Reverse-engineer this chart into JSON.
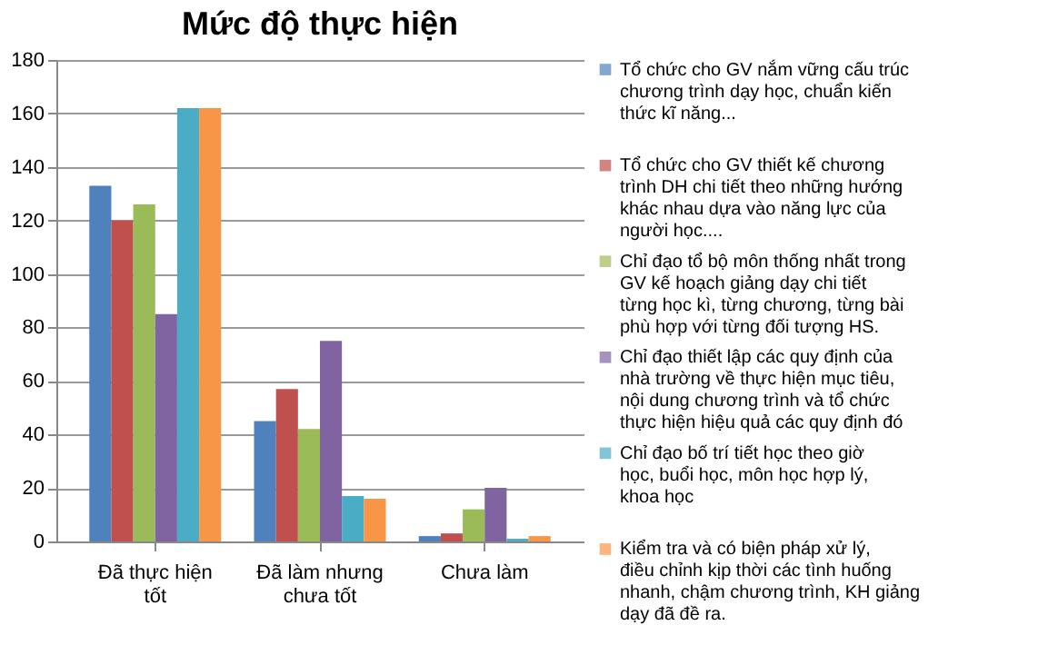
{
  "chart_data": {
    "type": "bar",
    "title": "Mức độ thực hiện",
    "categories": [
      "Đã thực hiện tốt",
      "Đã làm nhưng chưa tốt",
      "Chưa làm"
    ],
    "series": [
      {
        "name": "Tổ chức cho GV nắm vững cấu trúc chương trình dạy học, chuẩn kiến thức kĩ năng...",
        "color": "#4f81bd",
        "values": [
          133,
          45,
          2
        ]
      },
      {
        "name": "Tổ chức cho GV thiết kế chương trình DH chi tiết theo những hướng khác nhau dựa vào năng lực của người học....",
        "color": "#c0504d",
        "values": [
          120,
          57,
          3
        ]
      },
      {
        "name": "Chỉ đạo tổ bộ môn thống nhất trong GV kế hoạch giảng dạy chi tiết từng học kì, từng chương, từng bài phù hợp với từng đối tượng HS.",
        "color": "#9bbb59",
        "values": [
          126,
          42,
          12
        ]
      },
      {
        "name": "Chỉ đạo thiết lập các quy định của nhà trường về thực hiện mục tiêu, nội dung chương trình và tổ chức thực hiện hiệu quả các quy định đó",
        "color": "#8064a2",
        "values": [
          85,
          75,
          20
        ]
      },
      {
        "name": "Chỉ đạo bố trí tiết học theo giờ học, buổi học, môn học hợp lý, khoa học",
        "color": "#4bacc6",
        "values": [
          162,
          17,
          1
        ]
      },
      {
        "name": "Kiểm tra và có biện pháp xử lý, điều chỉnh kịp thời các tình huống nhanh, chậm chương trình, KH giảng dạy đã đề ra.",
        "color": "#f79646",
        "values": [
          162,
          16,
          2
        ]
      }
    ],
    "ylim": [
      0,
      180
    ],
    "yticks": [
      0,
      20,
      40,
      60,
      80,
      100,
      120,
      140,
      160,
      180
    ],
    "grid": "y",
    "legend": "right"
  }
}
